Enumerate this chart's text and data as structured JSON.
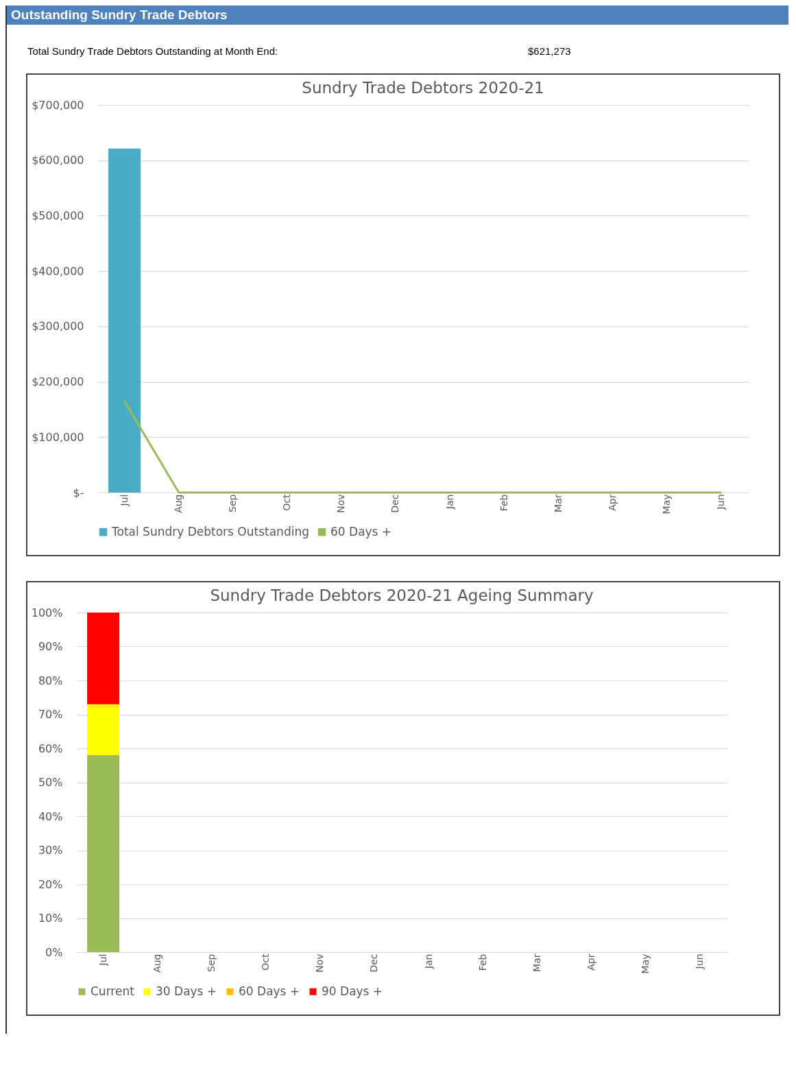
{
  "chart_data": [
    {
      "type": "bar",
      "annotations": [
        "Outstanding Sundry Trade Debtors",
        "Total Sundry Trade Debtors Outstanding at Month End:",
        "$621,273"
      ],
      "title": "Sundry Trade Debtors 2020-21",
      "categories": [
        "Jul",
        "Aug",
        "Sep",
        "Oct",
        "Nov",
        "Dec",
        "Jan",
        "Feb",
        "Mar",
        "Apr",
        "May",
        "Jun"
      ],
      "series": [
        {
          "name": "Total Sundry Debtors Outstanding",
          "color": "#4bacc6",
          "values": [
            621273,
            null,
            null,
            null,
            null,
            null,
            null,
            null,
            null,
            null,
            null,
            null
          ]
        },
        {
          "name": "60 Days +",
          "type": "line",
          "color": "#9bbb59",
          "values": [
            165000,
            0,
            0,
            0,
            0,
            0,
            0,
            0,
            0,
            0,
            0,
            0
          ]
        }
      ],
      "ylim": [
        0,
        700000
      ],
      "yticks": [
        {
          "value": 0,
          "label": "$-"
        },
        {
          "value": 100000,
          "label": "$100,000"
        },
        {
          "value": 200000,
          "label": "$200,000"
        },
        {
          "value": 300000,
          "label": "$300,000"
        },
        {
          "value": 400000,
          "label": "$400,000"
        },
        {
          "value": 500000,
          "label": "$500,000"
        },
        {
          "value": 600000,
          "label": "$600,000"
        },
        {
          "value": 700000,
          "label": "$700,000"
        }
      ],
      "grid": "y",
      "legend": "bottom"
    },
    {
      "type": "bar",
      "stacked": true,
      "title": "Sundry Trade Debtors 2020-21 Ageing Summary",
      "categories": [
        "Jul",
        "Aug",
        "Sep",
        "Oct",
        "Nov",
        "Dec",
        "Jan",
        "Feb",
        "Mar",
        "Apr",
        "May",
        "Jun"
      ],
      "series": [
        {
          "name": "Current",
          "color": "#9bbb59",
          "values": [
            58,
            null,
            null,
            null,
            null,
            null,
            null,
            null,
            null,
            null,
            null,
            null
          ]
        },
        {
          "name": "30 Days +",
          "color": "#ffff00",
          "values": [
            15,
            null,
            null,
            null,
            null,
            null,
            null,
            null,
            null,
            null,
            null,
            null
          ]
        },
        {
          "name": "60 Days +",
          "color": "#ffc000",
          "values": [
            0,
            null,
            null,
            null,
            null,
            null,
            null,
            null,
            null,
            null,
            null,
            null
          ]
        },
        {
          "name": "90 Days +",
          "color": "#ff0000",
          "values": [
            27,
            null,
            null,
            null,
            null,
            null,
            null,
            null,
            null,
            null,
            null,
            null
          ]
        }
      ],
      "ylim": [
        0,
        100
      ],
      "yticks": [
        {
          "value": 0,
          "label": "0%"
        },
        {
          "value": 10,
          "label": "10%"
        },
        {
          "value": 20,
          "label": "20%"
        },
        {
          "value": 30,
          "label": "30%"
        },
        {
          "value": 40,
          "label": "40%"
        },
        {
          "value": 50,
          "label": "50%"
        },
        {
          "value": 60,
          "label": "60%"
        },
        {
          "value": 70,
          "label": "70%"
        },
        {
          "value": 80,
          "label": "80%"
        },
        {
          "value": 90,
          "label": "90%"
        },
        {
          "value": 100,
          "label": "100%"
        }
      ],
      "grid": "y",
      "legend": "bottom"
    }
  ]
}
